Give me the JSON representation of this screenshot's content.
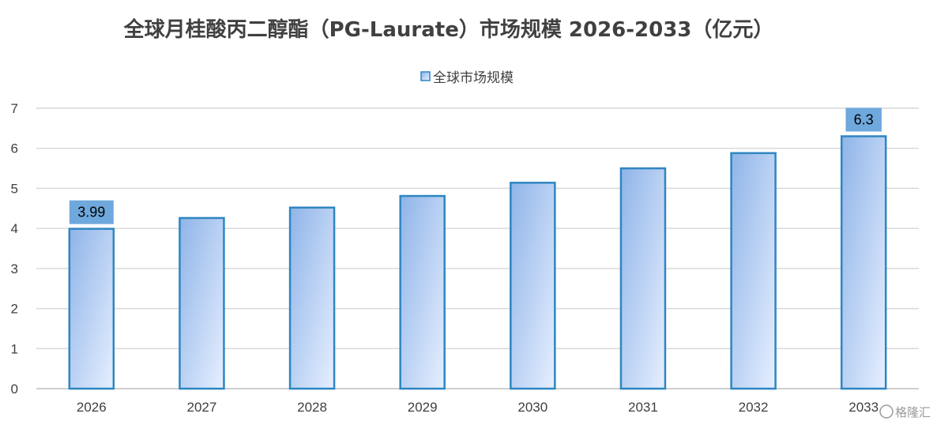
{
  "chart_data": {
    "type": "bar",
    "title": "全球月桂酸丙二醇酯（PG-Laurate）市场规模 2026-2033（亿元）",
    "legend": "全球市场规模",
    "categories": [
      "2026",
      "2027",
      "2028",
      "2029",
      "2030",
      "2031",
      "2032",
      "2033"
    ],
    "series": [
      {
        "name": "全球市场规模",
        "values": [
          3.99,
          4.26,
          4.52,
          4.81,
          5.14,
          5.5,
          5.88,
          6.3
        ]
      }
    ],
    "data_labels": [
      "3.99",
      "",
      "",
      "",
      "",
      "",
      "",
      "6.3"
    ],
    "ylim": [
      0,
      7
    ],
    "yticks": [
      "0",
      "1",
      "2",
      "3",
      "4",
      "5",
      "6",
      "7"
    ],
    "xlabel": "",
    "ylabel": "",
    "grid": true,
    "legend_position": "top",
    "colors": {
      "bar_border": "#2e86c1",
      "bar_fill_top": "#8fb4e8",
      "bar_fill_bottom": "#e6efff",
      "label_bg": "#6fa8dc",
      "grid": "#d9d9d9",
      "axis": "#bfbfbf"
    }
  },
  "watermark": "格隆汇"
}
